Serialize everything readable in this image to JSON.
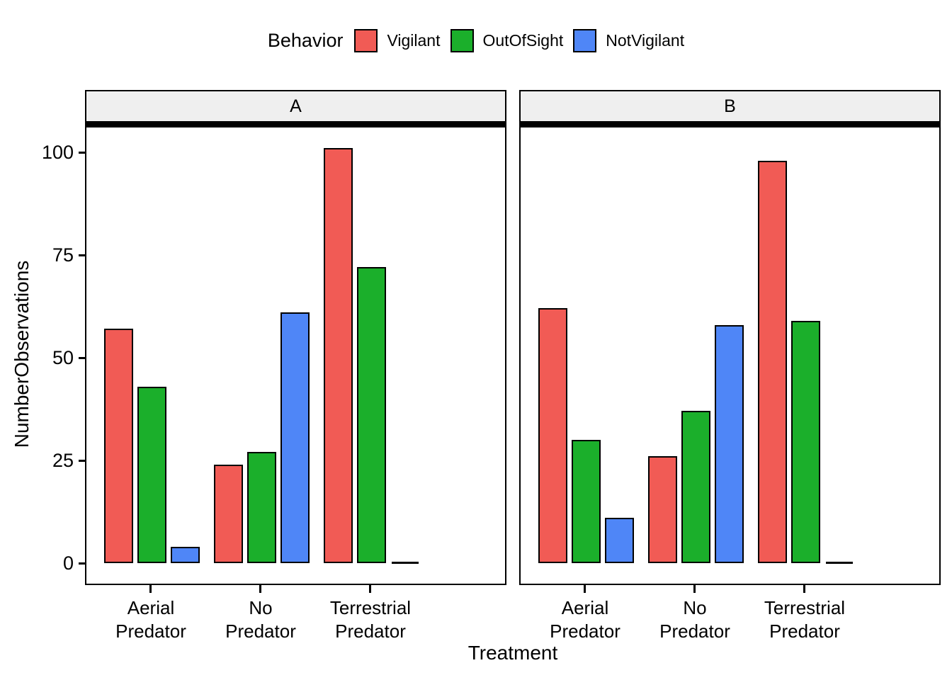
{
  "chart_data": {
    "type": "bar",
    "title": "",
    "legend_title": "Behavior",
    "legend_position": "top",
    "grid": "off",
    "facet_labels": [
      "A",
      "B"
    ],
    "series": [
      {
        "name": "Vigilant",
        "color": "#F15B55"
      },
      {
        "name": "OutOfSight",
        "color": "#1BAF2B"
      },
      {
        "name": "NotVigilant",
        "color": "#4F86F7"
      }
    ],
    "categories": [
      [
        "Aerial",
        "Predator"
      ],
      [
        "No",
        "Predator"
      ],
      [
        "Terrestrial",
        "Predator"
      ]
    ],
    "facets": [
      {
        "label": "A",
        "values": [
          [
            57,
            43,
            4
          ],
          [
            24,
            27,
            61
          ],
          [
            101,
            72,
            0
          ]
        ]
      },
      {
        "label": "B",
        "values": [
          [
            62,
            30,
            11
          ],
          [
            26,
            37,
            58
          ],
          [
            98,
            59,
            0
          ]
        ]
      }
    ],
    "xlabel": "Treatment",
    "ylabel": "NumberObservations",
    "yticks": [
      "0",
      "25",
      "50",
      "75",
      "100"
    ],
    "ylim": [
      0,
      106
    ],
    "bar_outline_color": "#000000",
    "strip_background": "#EFEFEF"
  }
}
